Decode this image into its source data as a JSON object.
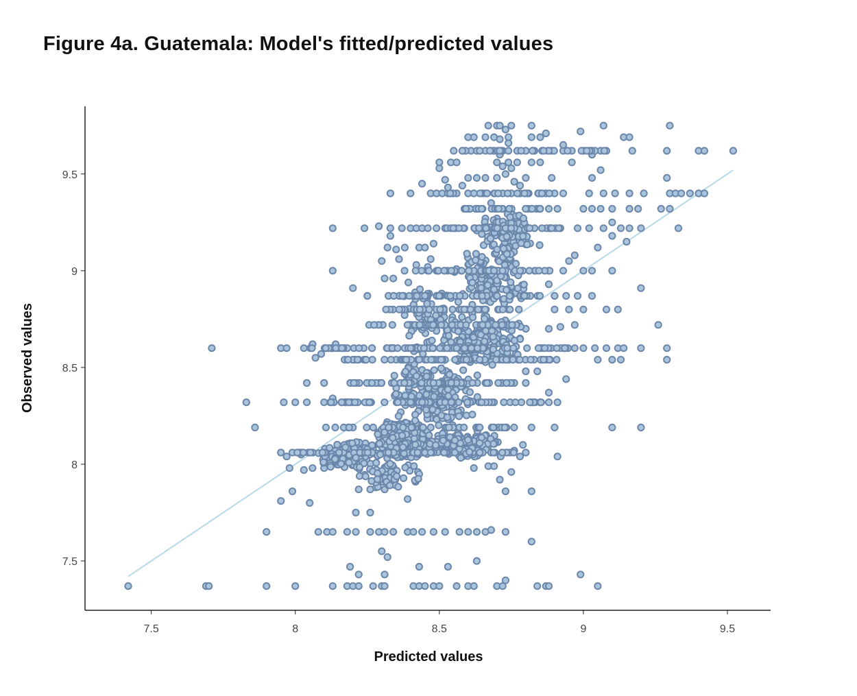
{
  "title": "Figure 4a. Guatemala: Model's fitted/predicted values",
  "chart_data": {
    "type": "scatter",
    "title": "Figure 4a. Guatemala: Model's fitted/predicted values",
    "xlabel": "Predicted values",
    "ylabel": "Observed values",
    "xlim": [
      7.27,
      9.65
    ],
    "ylim": [
      7.245,
      9.85
    ],
    "x_ticks": [
      7.5,
      8,
      8.5,
      9,
      9.5
    ],
    "x_tick_labels": [
      "7.5",
      "8",
      "8.5",
      "9",
      "9.5"
    ],
    "y_ticks": [
      7.5,
      8,
      8.5,
      9,
      9.5
    ],
    "y_tick_labels": [
      "7.5",
      "8",
      "8.5",
      "9",
      "9.5"
    ],
    "grid": false,
    "legend": "none",
    "colors": {
      "point_fill": "#aac4dc",
      "point_stroke": "#6a86ab",
      "fit_line": "#bcdbe8",
      "axis": "#222222"
    },
    "fit_line": {
      "x": [
        7.42,
        9.52
      ],
      "y": [
        7.42,
        9.52
      ]
    },
    "points": [
      [
        7.42,
        7.37
      ],
      [
        7.69,
        7.37
      ],
      [
        7.7,
        7.37
      ],
      [
        7.9,
        7.37
      ],
      [
        8.0,
        7.37
      ],
      [
        8.13,
        7.37
      ],
      [
        8.18,
        7.37
      ],
      [
        8.2,
        7.37
      ],
      [
        8.22,
        7.37
      ],
      [
        8.27,
        7.37
      ],
      [
        8.3,
        7.37
      ],
      [
        8.31,
        7.37
      ],
      [
        8.41,
        7.37
      ],
      [
        8.43,
        7.37
      ],
      [
        8.45,
        7.37
      ],
      [
        8.48,
        7.37
      ],
      [
        8.5,
        7.37
      ],
      [
        8.56,
        7.37
      ],
      [
        8.6,
        7.37
      ],
      [
        8.62,
        7.37
      ],
      [
        8.7,
        7.37
      ],
      [
        8.72,
        7.37
      ],
      [
        8.84,
        7.37
      ],
      [
        8.87,
        7.37
      ],
      [
        8.88,
        7.37
      ],
      [
        9.05,
        7.37
      ],
      [
        8.73,
        7.4
      ],
      [
        8.22,
        7.43
      ],
      [
        8.31,
        7.43
      ],
      [
        8.99,
        7.43
      ],
      [
        8.19,
        7.47
      ],
      [
        8.43,
        7.47
      ],
      [
        8.53,
        7.47
      ],
      [
        8.63,
        7.5
      ],
      [
        8.3,
        7.55
      ],
      [
        8.32,
        7.52
      ],
      [
        8.82,
        7.6
      ],
      [
        7.9,
        7.65
      ],
      [
        8.08,
        7.65
      ],
      [
        8.11,
        7.65
      ],
      [
        8.13,
        7.65
      ],
      [
        8.18,
        7.65
      ],
      [
        8.21,
        7.65
      ],
      [
        8.26,
        7.65
      ],
      [
        8.29,
        7.65
      ],
      [
        8.31,
        7.65
      ],
      [
        8.34,
        7.65
      ],
      [
        8.39,
        7.65
      ],
      [
        8.41,
        7.65
      ],
      [
        8.44,
        7.65
      ],
      [
        8.48,
        7.65
      ],
      [
        8.52,
        7.65
      ],
      [
        8.57,
        7.65
      ],
      [
        8.6,
        7.65
      ],
      [
        8.63,
        7.65
      ],
      [
        8.66,
        7.65
      ],
      [
        8.68,
        7.66
      ],
      [
        8.73,
        7.65
      ],
      [
        8.21,
        7.75
      ],
      [
        8.26,
        7.75
      ],
      [
        7.95,
        7.81
      ],
      [
        8.05,
        7.8
      ],
      [
        8.39,
        7.82
      ],
      [
        7.99,
        7.86
      ],
      [
        8.73,
        7.86
      ],
      [
        8.82,
        7.86
      ],
      [
        8.22,
        7.87
      ],
      [
        8.26,
        7.87
      ],
      [
        8.28,
        7.88
      ],
      [
        8.31,
        7.87
      ],
      [
        7.95,
        8.06
      ],
      [
        7.97,
        8.04
      ],
      [
        7.99,
        8.06
      ],
      [
        8.02,
        8.05
      ],
      [
        7.98,
        7.98
      ],
      [
        8.03,
        7.97
      ],
      [
        8.06,
        7.98
      ],
      [
        8.1,
        7.98
      ],
      [
        8.78,
        8.04
      ],
      [
        8.76,
        8.07
      ],
      [
        8.8,
        8.06
      ],
      [
        8.91,
        8.04
      ],
      [
        8.79,
        8.1
      ],
      [
        8.82,
        8.19
      ],
      [
        8.9,
        8.19
      ],
      [
        9.1,
        8.19
      ],
      [
        9.2,
        8.19
      ],
      [
        7.86,
        8.19
      ],
      [
        7.83,
        8.32
      ],
      [
        7.96,
        8.32
      ],
      [
        8.0,
        8.32
      ],
      [
        8.04,
        8.32
      ],
      [
        8.1,
        8.32
      ],
      [
        8.13,
        8.34
      ],
      [
        8.88,
        8.32
      ],
      [
        8.91,
        8.32
      ],
      [
        8.88,
        8.37
      ],
      [
        8.94,
        8.44
      ],
      [
        8.71,
        7.92
      ],
      [
        8.75,
        7.96
      ],
      [
        8.62,
        7.98
      ],
      [
        8.67,
        7.99
      ],
      [
        8.69,
        7.99
      ],
      [
        8.72,
        8.65
      ],
      [
        8.75,
        8.65
      ],
      [
        8.78,
        8.65
      ],
      [
        8.74,
        8.7
      ],
      [
        8.8,
        8.7
      ],
      [
        8.88,
        8.7
      ],
      [
        8.92,
        8.71
      ],
      [
        8.97,
        8.72
      ],
      [
        8.9,
        8.8
      ],
      [
        8.95,
        8.8
      ],
      [
        9.0,
        8.8
      ],
      [
        9.08,
        8.8
      ],
      [
        9.12,
        8.8
      ],
      [
        8.9,
        8.87
      ],
      [
        8.94,
        8.87
      ],
      [
        8.98,
        8.87
      ],
      [
        9.03,
        8.87
      ],
      [
        8.88,
        8.93
      ],
      [
        9.2,
        8.91
      ],
      [
        9.26,
        8.72
      ],
      [
        8.88,
        9.0
      ],
      [
        8.93,
        9.0
      ],
      [
        9.0,
        9.0
      ],
      [
        9.03,
        9.0
      ],
      [
        9.1,
        9.0
      ],
      [
        9.1,
        9.18
      ],
      [
        9.15,
        9.15
      ],
      [
        8.95,
        9.05
      ],
      [
        8.97,
        9.08
      ],
      [
        9.05,
        9.12
      ],
      [
        9.2,
        9.22
      ],
      [
        9.33,
        9.22
      ],
      [
        8.98,
        9.22
      ],
      [
        9.02,
        9.22
      ],
      [
        9.07,
        9.22
      ],
      [
        9.1,
        9.25
      ],
      [
        9.13,
        9.22
      ],
      [
        9.16,
        9.22
      ],
      [
        9.1,
        9.32
      ],
      [
        9.0,
        9.32
      ],
      [
        9.03,
        9.32
      ],
      [
        9.06,
        9.32
      ],
      [
        9.16,
        9.32
      ],
      [
        9.19,
        9.32
      ],
      [
        9.27,
        9.32
      ],
      [
        9.3,
        9.32
      ],
      [
        9.02,
        9.4
      ],
      [
        9.07,
        9.4
      ],
      [
        9.11,
        9.4
      ],
      [
        9.16,
        9.4
      ],
      [
        9.21,
        9.4
      ],
      [
        9.3,
        9.4
      ],
      [
        9.32,
        9.4
      ],
      [
        9.34,
        9.4
      ],
      [
        9.37,
        9.4
      ],
      [
        9.4,
        9.4
      ],
      [
        9.42,
        9.4
      ],
      [
        7.71,
        8.6
      ],
      [
        7.95,
        8.6
      ],
      [
        7.97,
        8.6
      ],
      [
        8.03,
        8.6
      ],
      [
        8.06,
        8.62
      ],
      [
        8.07,
        8.55
      ],
      [
        8.14,
        8.62
      ],
      [
        8.97,
        8.6
      ],
      [
        9.0,
        8.6
      ],
      [
        9.04,
        8.6
      ],
      [
        9.08,
        8.6
      ],
      [
        9.12,
        8.6
      ],
      [
        9.14,
        8.6
      ],
      [
        9.2,
        8.6
      ],
      [
        9.29,
        8.6
      ],
      [
        9.05,
        8.54
      ],
      [
        9.1,
        8.54
      ],
      [
        9.13,
        8.54
      ],
      [
        9.29,
        8.54
      ],
      [
        8.04,
        8.42
      ],
      [
        8.1,
        8.42
      ],
      [
        8.09,
        8.57
      ],
      [
        8.84,
        8.48
      ],
      [
        8.8,
        8.48
      ],
      [
        8.76,
        8.42
      ],
      [
        8.8,
        8.42
      ],
      [
        8.13,
        9.22
      ],
      [
        8.24,
        9.22
      ],
      [
        8.29,
        9.23
      ],
      [
        8.33,
        9.22
      ],
      [
        8.33,
        9.18
      ],
      [
        8.13,
        9.0
      ],
      [
        8.2,
        8.91
      ],
      [
        8.25,
        8.87
      ],
      [
        8.3,
        9.05
      ],
      [
        8.35,
        9.11
      ],
      [
        8.32,
        9.12
      ],
      [
        8.31,
        8.96
      ],
      [
        8.34,
        8.96
      ],
      [
        8.36,
        9.06
      ],
      [
        8.37,
        9.22
      ],
      [
        8.4,
        9.22
      ],
      [
        8.42,
        9.22
      ],
      [
        8.44,
        9.22
      ],
      [
        8.46,
        9.22
      ],
      [
        8.43,
        9.12
      ],
      [
        8.45,
        9.12
      ],
      [
        8.47,
        9.06
      ],
      [
        8.42,
        9.03
      ],
      [
        8.46,
        9.02
      ],
      [
        8.38,
        9.12
      ],
      [
        8.49,
        9.22
      ],
      [
        8.52,
        9.22
      ],
      [
        8.48,
        9.14
      ],
      [
        8.33,
        9.4
      ],
      [
        8.4,
        9.4
      ],
      [
        8.47,
        9.4
      ],
      [
        8.49,
        9.4
      ],
      [
        8.51,
        9.4
      ],
      [
        8.53,
        9.4
      ],
      [
        8.56,
        9.4
      ],
      [
        8.6,
        9.4
      ],
      [
        8.62,
        9.4
      ],
      [
        8.65,
        9.4
      ],
      [
        8.69,
        9.4
      ],
      [
        8.72,
        9.4
      ],
      [
        8.75,
        9.4
      ],
      [
        8.78,
        9.4
      ],
      [
        8.81,
        9.4
      ],
      [
        8.85,
        9.4
      ],
      [
        8.87,
        9.4
      ],
      [
        8.9,
        9.4
      ],
      [
        8.93,
        9.4
      ],
      [
        8.44,
        9.45
      ],
      [
        8.5,
        9.53
      ],
      [
        8.52,
        9.47
      ],
      [
        8.5,
        9.56
      ],
      [
        8.54,
        9.56
      ],
      [
        8.56,
        9.56
      ],
      [
        8.53,
        9.43
      ],
      [
        8.58,
        9.44
      ],
      [
        8.6,
        9.48
      ],
      [
        8.63,
        9.48
      ],
      [
        8.66,
        9.48
      ],
      [
        8.7,
        9.48
      ],
      [
        8.73,
        9.5
      ],
      [
        8.75,
        9.53
      ],
      [
        8.77,
        9.56
      ],
      [
        8.7,
        9.56
      ],
      [
        8.72,
        9.54
      ],
      [
        8.74,
        9.56
      ],
      [
        8.76,
        9.46
      ],
      [
        8.78,
        9.44
      ],
      [
        8.8,
        9.48
      ],
      [
        8.82,
        9.56
      ],
      [
        8.85,
        9.56
      ],
      [
        8.89,
        9.48
      ],
      [
        8.96,
        9.56
      ],
      [
        9.03,
        9.48
      ],
      [
        9.06,
        9.52
      ],
      [
        8.55,
        9.62
      ],
      [
        8.58,
        9.62
      ],
      [
        8.61,
        9.62
      ],
      [
        8.63,
        9.62
      ],
      [
        8.66,
        9.62
      ],
      [
        8.69,
        9.62
      ],
      [
        8.72,
        9.62
      ],
      [
        8.74,
        9.62
      ],
      [
        8.77,
        9.62
      ],
      [
        8.8,
        9.62
      ],
      [
        8.83,
        9.62
      ],
      [
        8.86,
        9.62
      ],
      [
        8.89,
        9.62
      ],
      [
        8.93,
        9.62
      ],
      [
        8.96,
        9.62
      ],
      [
        9.0,
        9.62
      ],
      [
        9.03,
        9.62
      ],
      [
        9.06,
        9.62
      ],
      [
        9.08,
        9.62
      ],
      [
        9.17,
        9.62
      ],
      [
        9.29,
        9.62
      ],
      [
        9.4,
        9.62
      ],
      [
        9.42,
        9.62
      ],
      [
        9.52,
        9.62
      ],
      [
        8.93,
        9.65
      ],
      [
        8.99,
        9.72
      ],
      [
        9.03,
        9.6
      ],
      [
        8.71,
        9.6
      ],
      [
        8.74,
        9.66
      ],
      [
        8.6,
        9.69
      ],
      [
        8.62,
        9.69
      ],
      [
        8.66,
        9.69
      ],
      [
        8.69,
        9.69
      ],
      [
        8.71,
        9.68
      ],
      [
        8.74,
        9.69
      ],
      [
        8.82,
        9.69
      ],
      [
        8.85,
        9.69
      ],
      [
        8.87,
        9.71
      ],
      [
        9.14,
        9.69
      ],
      [
        9.16,
        9.69
      ],
      [
        8.67,
        9.75
      ],
      [
        8.7,
        9.75
      ],
      [
        8.71,
        9.75
      ],
      [
        8.73,
        9.73
      ],
      [
        8.75,
        9.75
      ],
      [
        8.82,
        9.75
      ],
      [
        9.07,
        9.75
      ],
      [
        9.3,
        9.75
      ],
      [
        9.29,
        9.48
      ],
      [
        8.68,
        9.35
      ],
      [
        8.72,
        9.32
      ],
      [
        8.75,
        9.3
      ],
      [
        8.78,
        9.28
      ],
      [
        8.82,
        9.32
      ],
      [
        8.85,
        9.32
      ],
      [
        8.88,
        9.32
      ],
      [
        8.91,
        9.32
      ],
      [
        8.6,
        9.32
      ],
      [
        8.63,
        9.32
      ],
      [
        8.66,
        9.27
      ],
      [
        8.7,
        9.27
      ]
    ],
    "clusters": [
      {
        "x": [
          8.28,
          8.47
        ],
        "y": [
          8.03,
          8.22
        ],
        "n": 520,
        "seed": 11
      },
      {
        "x": [
          8.07,
          8.3
        ],
        "y": [
          7.97,
          8.12
        ],
        "n": 150,
        "seed": 12
      },
      {
        "x": [
          8.44,
          8.72
        ],
        "y": [
          8.03,
          8.18
        ],
        "n": 200,
        "seed": 13
      },
      {
        "x": [
          8.33,
          8.65
        ],
        "y": [
          8.2,
          8.52
        ],
        "n": 240,
        "seed": 14
      },
      {
        "x": [
          8.5,
          8.8
        ],
        "y": [
          8.5,
          8.8
        ],
        "n": 170,
        "seed": 15
      },
      {
        "x": [
          8.55,
          8.82
        ],
        "y": [
          8.8,
          9.12
        ],
        "n": 120,
        "seed": 16
      },
      {
        "x": [
          8.6,
          8.85
        ],
        "y": [
          9.05,
          9.32
        ],
        "n": 90,
        "seed": 17
      },
      {
        "x": [
          8.2,
          8.45
        ],
        "y": [
          7.88,
          8.02
        ],
        "n": 60,
        "seed": 18
      },
      {
        "x": [
          8.35,
          8.58
        ],
        "y": [
          8.55,
          8.95
        ],
        "n": 80,
        "seed": 19
      }
    ],
    "bands": [
      {
        "y": 8.6,
        "x": [
          8.05,
          8.95
        ],
        "n": 90,
        "seed": 21
      },
      {
        "y": 8.54,
        "x": [
          8.17,
          8.92
        ],
        "n": 70,
        "seed": 22
      },
      {
        "y": 8.42,
        "x": [
          8.18,
          8.76
        ],
        "n": 55,
        "seed": 23
      },
      {
        "y": 8.32,
        "x": [
          8.1,
          8.86
        ],
        "n": 60,
        "seed": 24
      },
      {
        "y": 8.72,
        "x": [
          8.25,
          8.8
        ],
        "n": 45,
        "seed": 25
      },
      {
        "y": 8.8,
        "x": [
          8.28,
          8.78
        ],
        "n": 40,
        "seed": 26
      },
      {
        "y": 8.87,
        "x": [
          8.32,
          8.85
        ],
        "n": 45,
        "seed": 27
      },
      {
        "y": 9.0,
        "x": [
          8.35,
          8.9
        ],
        "n": 45,
        "seed": 28
      },
      {
        "y": 9.22,
        "x": [
          8.52,
          8.92
        ],
        "n": 35,
        "seed": 29
      },
      {
        "y": 9.32,
        "x": [
          8.58,
          8.9
        ],
        "n": 20,
        "seed": 30
      },
      {
        "y": 9.62,
        "x": [
          8.58,
          9.08
        ],
        "n": 25,
        "seed": 31
      },
      {
        "y": 9.4,
        "x": [
          8.53,
          8.9
        ],
        "n": 18,
        "seed": 32
      },
      {
        "y": 8.19,
        "x": [
          8.1,
          8.78
        ],
        "n": 35,
        "seed": 33
      },
      {
        "y": 8.06,
        "x": [
          8.0,
          8.78
        ],
        "n": 45,
        "seed": 34
      }
    ]
  }
}
